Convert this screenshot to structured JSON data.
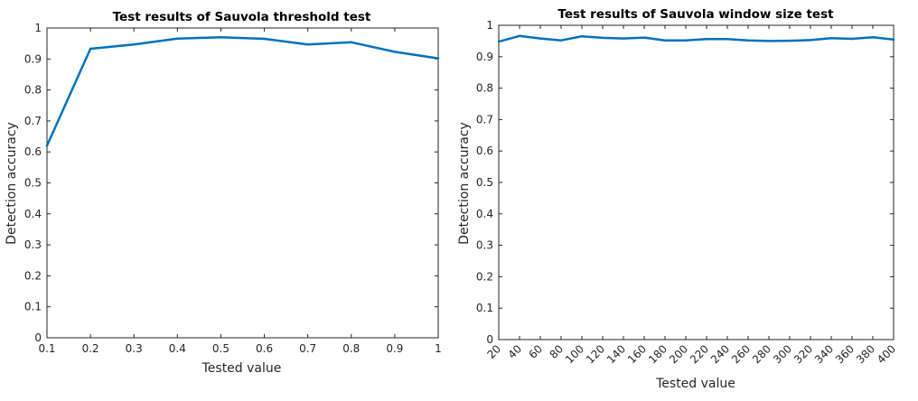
{
  "chart_data": [
    {
      "type": "line",
      "title": "Test results of Sauvola threshold test",
      "xlabel": "Tested value",
      "ylabel": "Detection accuracy",
      "xlim": [
        0.1,
        1
      ],
      "ylim": [
        0,
        1
      ],
      "xticks": [
        "0.1",
        "0.2",
        "0.3",
        "0.4",
        "0.5",
        "0.6",
        "0.7",
        "0.8",
        "0.9",
        "1"
      ],
      "xtick_values": [
        0.1,
        0.2,
        0.3,
        0.4,
        0.5,
        0.6,
        0.7,
        0.8,
        0.9,
        1.0
      ],
      "yticks": [
        "0",
        "0.1",
        "0.2",
        "0.3",
        "0.4",
        "0.5",
        "0.6",
        "0.7",
        "0.8",
        "0.9",
        "1"
      ],
      "ytick_values": [
        0,
        0.1,
        0.2,
        0.3,
        0.4,
        0.5,
        0.6,
        0.7,
        0.8,
        0.9,
        1.0
      ],
      "xtick_rotation": 0,
      "grid": false,
      "color": "#0072BD",
      "series": [
        {
          "x": [
            0.1,
            0.2,
            0.3,
            0.4,
            0.5,
            0.6,
            0.7,
            0.8,
            0.9,
            1.0
          ],
          "values": [
            0.62,
            0.933,
            0.947,
            0.966,
            0.97,
            0.965,
            0.947,
            0.954,
            0.923,
            0.902
          ]
        }
      ]
    },
    {
      "type": "line",
      "title": "Test results of Sauvola window size test",
      "xlabel": "Tested value",
      "ylabel": "Detection accuracy",
      "xlim": [
        20,
        400
      ],
      "ylim": [
        0,
        1
      ],
      "xticks": [
        "20",
        "40",
        "60",
        "80",
        "100",
        "120",
        "140",
        "160",
        "180",
        "200",
        "220",
        "240",
        "260",
        "280",
        "300",
        "320",
        "340",
        "360",
        "380",
        "400"
      ],
      "xtick_values": [
        20,
        40,
        60,
        80,
        100,
        120,
        140,
        160,
        180,
        200,
        220,
        240,
        260,
        280,
        300,
        320,
        340,
        360,
        380,
        400
      ],
      "yticks": [
        "0",
        "0.1",
        "0.2",
        "0.3",
        "0.4",
        "0.5",
        "0.6",
        "0.7",
        "0.8",
        "0.9",
        "1"
      ],
      "ytick_values": [
        0,
        0.1,
        0.2,
        0.3,
        0.4,
        0.5,
        0.6,
        0.7,
        0.8,
        0.9,
        1.0
      ],
      "xtick_rotation": -45,
      "grid": false,
      "color": "#0072BD",
      "series": [
        {
          "x": [
            20,
            40,
            60,
            80,
            100,
            120,
            140,
            160,
            180,
            200,
            220,
            240,
            260,
            280,
            300,
            320,
            340,
            360,
            380,
            400
          ],
          "values": [
            0.948,
            0.966,
            0.958,
            0.952,
            0.965,
            0.96,
            0.958,
            0.961,
            0.952,
            0.952,
            0.956,
            0.956,
            0.952,
            0.95,
            0.951,
            0.953,
            0.959,
            0.957,
            0.962,
            0.955
          ]
        }
      ]
    }
  ]
}
